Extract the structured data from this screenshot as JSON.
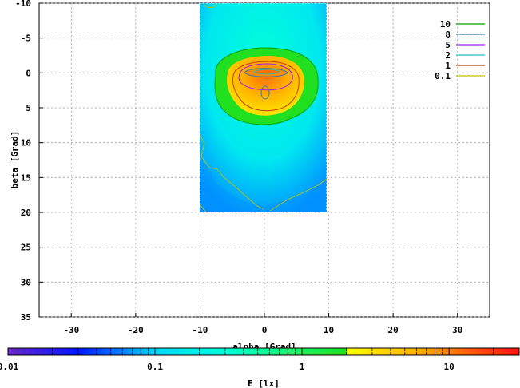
{
  "chart_data": {
    "type": "heatmap",
    "title": "",
    "xlabel": "alpha [Grad]",
    "ylabel": "beta [Grad]",
    "xlim": [
      -35,
      35
    ],
    "ylim": [
      35,
      -10
    ],
    "y_axis_inverted": true,
    "grid": true,
    "x_ticks": [
      "-30",
      "-20",
      "-10",
      "0",
      "10",
      "20",
      "30"
    ],
    "y_ticks": [
      "-10",
      "-5",
      "0",
      "5",
      "10",
      "15",
      "20",
      "25",
      "30",
      "35"
    ],
    "data_extent": {
      "alpha": [
        -10,
        10
      ],
      "beta": [
        -10,
        20
      ]
    },
    "peak": {
      "alpha": 0,
      "beta": 0,
      "approx_lx": 25
    },
    "legend_position": "top-right",
    "contours": [
      {
        "level": "10",
        "color": "#00a000"
      },
      {
        "level": "8",
        "color": "#4080a0"
      },
      {
        "level": "5",
        "color": "#a020f0"
      },
      {
        "level": "2",
        "color": "#20c0c0"
      },
      {
        "level": "1",
        "color": "#c04000"
      },
      {
        "level": "0.1",
        "color": "#c0c000"
      }
    ],
    "colorbar": {
      "label": "E [lx]",
      "scale": "log",
      "range": [
        0.01,
        30
      ],
      "tick_labels": [
        "0.01",
        "0.1",
        "1",
        "10"
      ],
      "tick_values": [
        0.01,
        0.1,
        1,
        10
      ]
    }
  }
}
